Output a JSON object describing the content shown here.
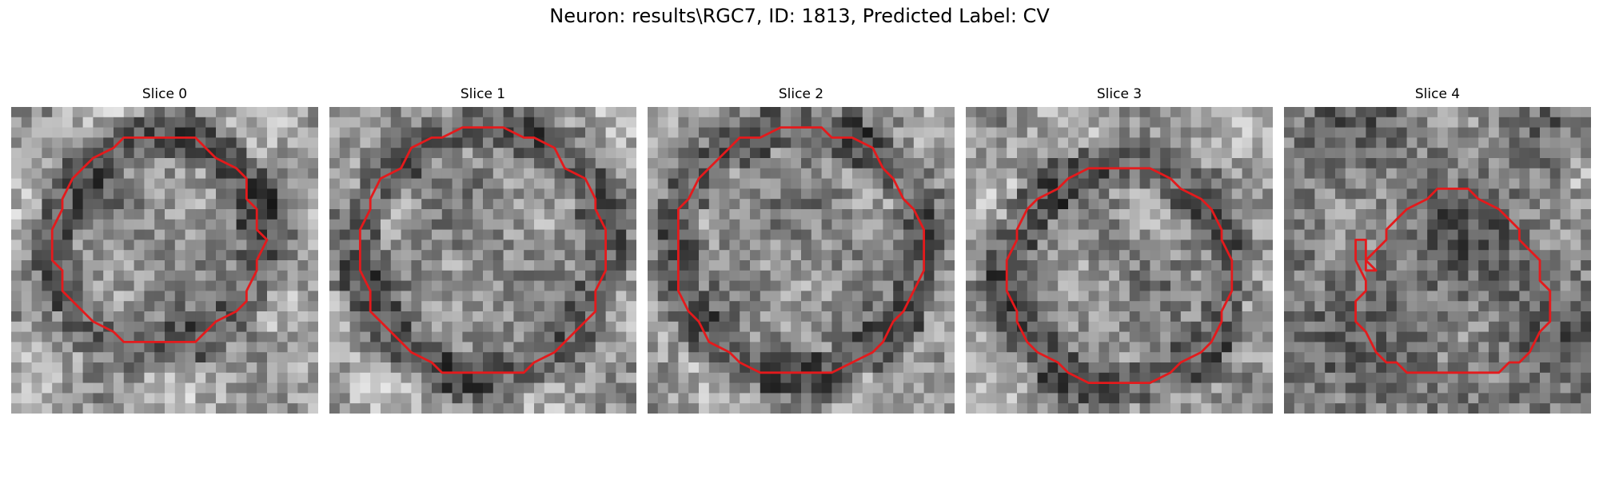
{
  "figure": {
    "suptitle": "Neuron: results\\RGC7, ID: 1813, Predicted Label: CV",
    "contour_color": "#e41a1c",
    "panels": [
      {
        "title": "Slice 0",
        "seed": 11,
        "center": [
          0.48,
          0.44
        ],
        "radius": 0.34,
        "ring": "dark",
        "shape": "round"
      },
      {
        "title": "Slice 1",
        "seed": 23,
        "center": [
          0.5,
          0.47
        ],
        "radius": 0.4,
        "ring": "dark",
        "shape": "round"
      },
      {
        "title": "Slice 2",
        "seed": 37,
        "center": [
          0.49,
          0.47
        ],
        "radius": 0.4,
        "ring": "dark",
        "shape": "round"
      },
      {
        "title": "Slice 3",
        "seed": 41,
        "center": [
          0.5,
          0.55
        ],
        "radius": 0.36,
        "ring": "dark",
        "shape": "round"
      },
      {
        "title": "Slice 4",
        "seed": 53,
        "center": [
          0.55,
          0.6
        ],
        "radius": 0.3,
        "ring": "light",
        "shape": "notch"
      }
    ]
  }
}
